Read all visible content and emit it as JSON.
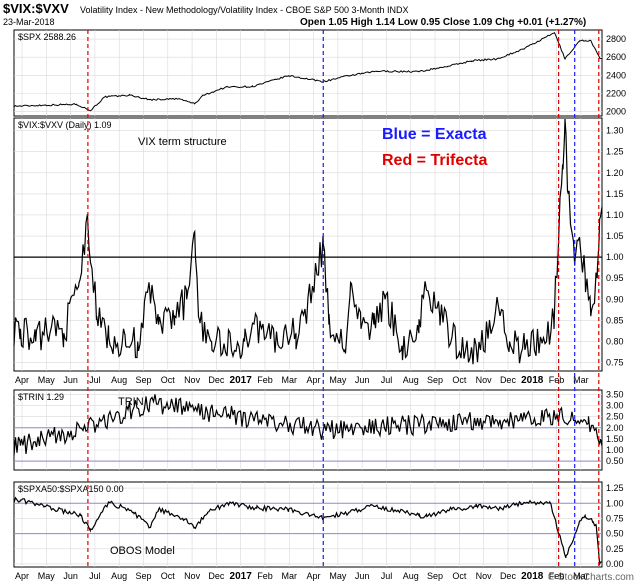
{
  "header": {
    "symbol": "$VIX:$VXV",
    "description": "Volatility Index - New Methodology/Volatility Index - CBOE S&P 500 3-Month INDX",
    "date": "23-Mar-2018",
    "quote": "Open 1.05 High 1.14 Low 0.95 Close 1.09 Chg +0.01 (+1.27%)",
    "watermark": "© StockCharts.com"
  },
  "colors": {
    "blue_line": "#1a1aff",
    "red_line": "#e00000",
    "grid": "#d9d9d9",
    "hline": "#000000",
    "band": "#8a8ad8"
  },
  "x_axis": {
    "labels": [
      "Apr",
      "May",
      "Jun",
      "Jul",
      "Aug",
      "Sep",
      "Oct",
      "Nov",
      "Dec",
      "2017",
      "Feb",
      "Mar",
      "Apr",
      "May",
      "Jun",
      "Jul",
      "Aug",
      "Sep",
      "Oct",
      "Nov",
      "Dec",
      "2018",
      "Feb",
      "Mar"
    ],
    "bold": [
      "2017",
      "2018"
    ]
  },
  "vertical_markers": {
    "red": [
      "Jun 24 2016",
      "Jan 31 2018",
      "Mar 22 2018"
    ],
    "blue": [
      "Apr 13 2017",
      "Feb 20 2018"
    ]
  },
  "annotations": {
    "blue": "Blue = Exacta",
    "red": "Red = Trifecta",
    "term": "VIX term structure",
    "trin": "TRIN",
    "obos": "OBOS Model"
  },
  "chart_data": [
    {
      "type": "line",
      "title": "$SPX 2588.26",
      "yticks": [
        2000,
        2200,
        2400,
        2600,
        2800
      ],
      "ylim": [
        1950,
        2900
      ],
      "x": [
        "2016-04-01",
        "2016-05-01",
        "2016-06-10",
        "2016-06-27",
        "2016-07-15",
        "2016-08-15",
        "2016-09-09",
        "2016-10-15",
        "2016-11-04",
        "2016-11-15",
        "2016-12-13",
        "2017-01-15",
        "2017-03-01",
        "2017-04-13",
        "2017-05-15",
        "2017-06-19",
        "2017-08-10",
        "2017-09-15",
        "2017-10-15",
        "2017-11-15",
        "2017-12-18",
        "2018-01-26",
        "2018-02-08",
        "2018-02-26",
        "2018-03-12",
        "2018-03-23"
      ],
      "values": [
        2060,
        2070,
        2080,
        2010,
        2160,
        2180,
        2130,
        2140,
        2085,
        2180,
        2270,
        2275,
        2395,
        2330,
        2395,
        2445,
        2440,
        2500,
        2560,
        2580,
        2690,
        2870,
        2580,
        2780,
        2785,
        2588
      ]
    },
    {
      "type": "line",
      "title": "$VIX:$VXV (Daily) 1.09",
      "yticks": [
        0.75,
        0.8,
        0.85,
        0.9,
        0.95,
        1.0,
        1.05,
        1.1,
        1.15,
        1.2,
        1.25,
        1.3
      ],
      "ylim": [
        0.73,
        1.33
      ],
      "hline": 1.0,
      "x": [
        "2016-04-01",
        "2016-04-20",
        "2016-05-10",
        "2016-05-25",
        "2016-06-13",
        "2016-06-24",
        "2016-07-05",
        "2016-07-20",
        "2016-08-10",
        "2016-08-25",
        "2016-09-09",
        "2016-09-20",
        "2016-10-10",
        "2016-10-25",
        "2016-11-04",
        "2016-11-10",
        "2016-11-25",
        "2016-12-15",
        "2017-01-05",
        "2017-01-25",
        "2017-02-15",
        "2017-03-10",
        "2017-03-22",
        "2017-04-13",
        "2017-04-20",
        "2017-05-10",
        "2017-05-17",
        "2017-05-30",
        "2017-06-15",
        "2017-06-29",
        "2017-07-20",
        "2017-08-10",
        "2017-08-18",
        "2017-09-05",
        "2017-09-25",
        "2017-10-15",
        "2017-11-01",
        "2017-11-15",
        "2017-12-01",
        "2017-12-20",
        "2018-01-10",
        "2018-01-25",
        "2018-02-05",
        "2018-02-08",
        "2018-02-12",
        "2018-02-20",
        "2018-02-23",
        "2018-03-05",
        "2018-03-12",
        "2018-03-20",
        "2018-03-23"
      ],
      "values": [
        0.83,
        0.8,
        0.84,
        0.82,
        0.94,
        1.08,
        0.86,
        0.81,
        0.79,
        0.8,
        0.92,
        0.84,
        0.86,
        0.9,
        1.06,
        0.85,
        0.8,
        0.79,
        0.8,
        0.84,
        0.8,
        0.82,
        0.86,
        1.03,
        0.84,
        0.78,
        0.94,
        0.83,
        0.84,
        0.9,
        0.79,
        0.82,
        0.94,
        0.86,
        0.8,
        0.78,
        0.8,
        0.9,
        0.8,
        0.78,
        0.8,
        0.85,
        1.22,
        1.34,
        1.15,
        0.98,
        1.04,
        0.96,
        0.86,
        0.95,
        1.09
      ]
    },
    {
      "type": "line",
      "title": "$TRIN 1.29",
      "yticks": [
        0.5,
        1.0,
        1.5,
        2.0,
        2.5,
        3.0,
        3.5
      ],
      "ylim": [
        0.1,
        3.7
      ],
      "hlines": [
        0.5,
        2.0
      ],
      "x": [
        "2016-04-01",
        "2016-06-24",
        "2016-09-09",
        "2017-04-13",
        "2018-02-05",
        "2018-02-20",
        "2018-03-09",
        "2018-03-23"
      ],
      "values": [
        1.2,
        2.0,
        3.1,
        1.9,
        2.5,
        2.3,
        2.2,
        1.29
      ]
    },
    {
      "type": "line",
      "title": "$SPXA50:$SPXA150 0.00",
      "yticks": [
        0.0,
        0.25,
        0.5,
        0.75,
        1.0,
        1.25
      ],
      "ylim": [
        -0.05,
        1.35
      ],
      "hlines": [
        0.5,
        1.0
      ],
      "x": [
        "2016-04-01",
        "2016-05-01",
        "2016-06-15",
        "2016-06-27",
        "2016-07-20",
        "2016-08-20",
        "2016-09-09",
        "2016-09-20",
        "2016-10-20",
        "2016-11-04",
        "2016-11-20",
        "2016-12-15",
        "2017-01-20",
        "2017-03-01",
        "2017-04-13",
        "2017-05-15",
        "2017-06-15",
        "2017-08-10",
        "2017-08-20",
        "2017-09-20",
        "2017-10-20",
        "2017-11-20",
        "2017-12-15",
        "2018-01-20",
        "2018-02-05",
        "2018-02-09",
        "2018-02-25",
        "2018-03-05",
        "2018-03-15",
        "2018-03-19",
        "2018-03-23"
      ],
      "values": [
        1.05,
        0.95,
        0.8,
        0.55,
        1.02,
        0.85,
        0.6,
        0.9,
        0.75,
        0.6,
        0.85,
        1.0,
        0.92,
        0.9,
        0.75,
        0.85,
        0.95,
        0.8,
        0.78,
        0.9,
        0.95,
        0.92,
        1.0,
        1.02,
        0.3,
        0.1,
        0.65,
        0.8,
        0.7,
        0.6,
        0.0
      ]
    }
  ]
}
